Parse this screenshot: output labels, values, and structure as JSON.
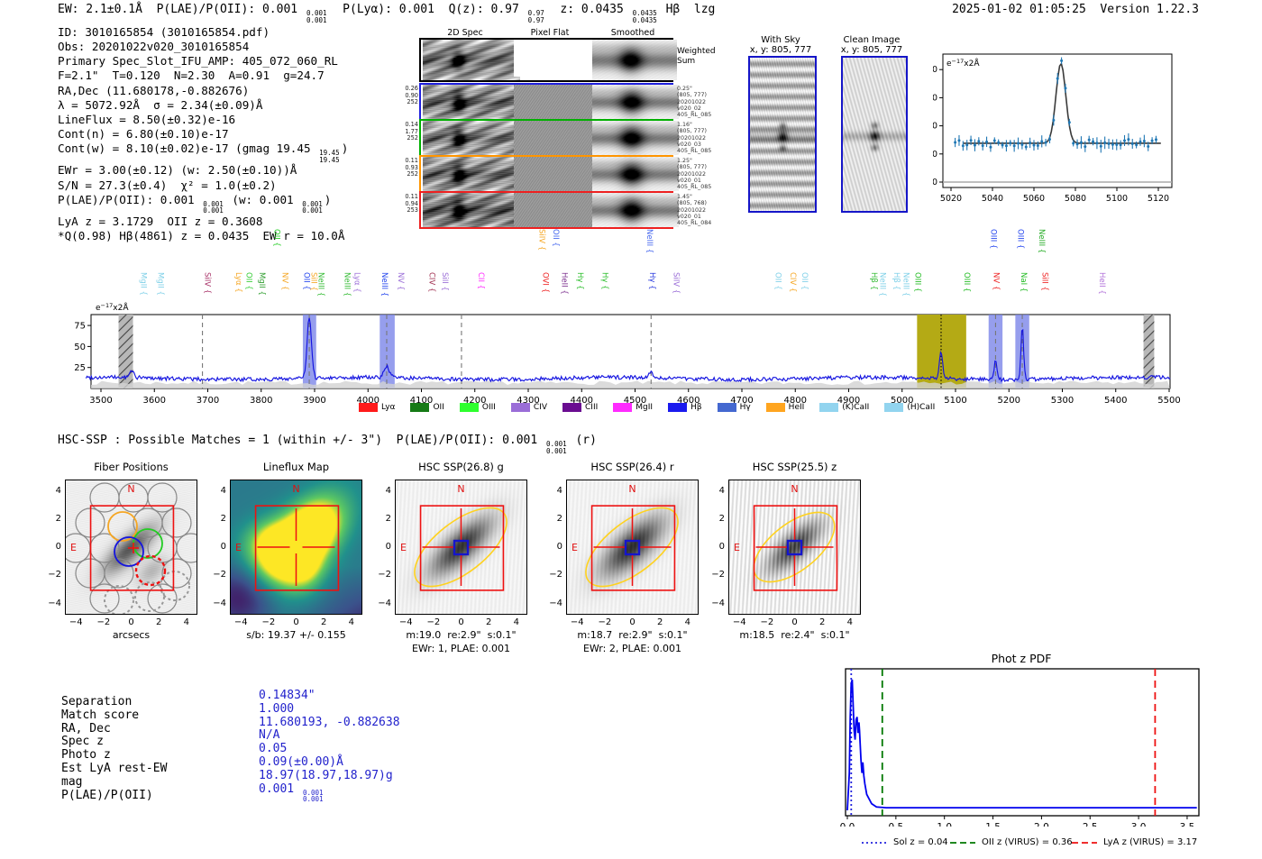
{
  "header": {
    "left": "EW: 2.1±0.1Å  P(LAE)/P(OII): 0.001 {0.001|0.001}  P(Lyα): 0.001  Q(z): 0.97 {0.97|0.97}  z: 0.0435 {0.0435|0.0435} Hβ  lzg",
    "right": "2025-01-02 01:05:25  Version 1.22.3"
  },
  "info_lines": [
    "ID: 3010165854 (3010165854.pdf)",
    "Obs: 20201022v020_3010165854",
    "Primary Spec_Slot_IFU_AMP: 405_072_060_RL",
    "F=2.1\"  T=0.120  N=2.30  A=0.91  g=24.7",
    "RA,Dec (11.680178,-0.882676)",
    "λ = 5072.92Å  σ = 2.34(±0.09)Å",
    "LineFlux = 8.50(±0.32)e-16",
    "Cont(n) = 6.80(±0.10)e-17",
    "Cont(w) = 8.10(±0.02)e-17 (gmag 19.45 {19.45|19.45})",
    "EWr = 3.00(±0.12) (w: 2.50(±0.10))Å",
    "S/N = 27.3(±0.4)  χ² = 1.0(±0.2)",
    "P(LAE)/P(OII): 0.001 {0.001|0.001} (w: 0.001 {0.001|0.001})",
    "LyA z = 3.1729  OII z = 0.3608",
    "*Q(0.98) Hβ(4861) z = 0.0435  EW r = 10.0Å"
  ],
  "spec2d": {
    "col_headers": [
      "2D Spec",
      "Pixel Flat",
      "Smoothed"
    ],
    "rows": [
      {
        "color": "#000000",
        "left": [],
        "right": [
          "Weighted",
          "Sum"
        ],
        "flat": "blank",
        "kind": "weighted"
      },
      {
        "color": "#2020dd",
        "left": [
          "0.26",
          "0.90",
          "252"
        ],
        "right": [
          "0.25\"",
          "(805, 777)",
          "20201022",
          "v020_02",
          "405_RL_085"
        ],
        "flat": "noise"
      },
      {
        "color": "#00b000",
        "left": [
          "0.14",
          "1.77",
          "252"
        ],
        "right": [
          "1.16\"",
          "(805, 777)",
          "20201022",
          "v020_03",
          "405_RL_085"
        ],
        "flat": "noise"
      },
      {
        "color": "#ff9500",
        "left": [
          "0.11",
          "0.93",
          "252"
        ],
        "right": [
          "1.25\"",
          "(805, 777)",
          "20201022",
          "v020_01",
          "405_RL_085"
        ],
        "flat": "noise"
      },
      {
        "color": "#ee2020",
        "left": [
          "0.11",
          "0.94",
          "253"
        ],
        "right": [
          "1.45\"",
          "(805, 768)",
          "20201022",
          "v020_01",
          "405_RL_084"
        ],
        "flat": "noise"
      }
    ]
  },
  "cutouts": {
    "with_sky": {
      "title": "With Sky",
      "subtitle": "x, y: 805, 777"
    },
    "clean": {
      "title": "Clean Image",
      "subtitle": "x, y: 805, 777"
    }
  },
  "hsc_line": "HSC-SSP : Possible Matches = 1 (within +/- 3\")  P(LAE)/P(OII): 0.001 {0.001|0.001} (r)",
  "legend": [
    {
      "label": "Lyα",
      "color": "#ff1a1a"
    },
    {
      "label": "OII",
      "color": "#157a15"
    },
    {
      "label": "OIII",
      "color": "#2eff2e"
    },
    {
      "label": "CIV",
      "color": "#9a6dd7"
    },
    {
      "label": "CIII",
      "color": "#6a0d91"
    },
    {
      "label": "MgII",
      "color": "#ff2bff"
    },
    {
      "label": "Hβ",
      "color": "#1a1aee"
    },
    {
      "label": "Hγ",
      "color": "#4468d0"
    },
    {
      "label": "HeII",
      "color": "#ffa51f"
    },
    {
      "label": "(K)CaII",
      "color": "#92d4ef"
    },
    {
      "label": "(H)CaII",
      "color": "#92d4ef"
    }
  ],
  "line_labels": [
    {
      "wl": 3580,
      "name": "MgII",
      "color": "#7fd0e8",
      "tier": 0
    },
    {
      "wl": 3612,
      "name": "MgII",
      "color": "#7fd0e8",
      "tier": 0
    },
    {
      "wl": 3700,
      "name": "SiIV",
      "color": "#a83268",
      "tier": 0
    },
    {
      "wl": 3758,
      "name": "Lyα",
      "color": "#f5a623",
      "tier": 0
    },
    {
      "wl": 3778,
      "name": "OII",
      "color": "#33cc33",
      "tier": 0
    },
    {
      "wl": 3802,
      "name": "MgII",
      "color": "#2f9e2f",
      "tier": 0
    },
    {
      "wl": 3830,
      "name": "OII",
      "color": "#22cc22",
      "tier": 1
    },
    {
      "wl": 3845,
      "name": "NV",
      "color": "#f5a623",
      "tier": 0
    },
    {
      "wl": 3886,
      "name": "OII",
      "color": "#2244ee",
      "tier": 0
    },
    {
      "wl": 3899,
      "name": "SiII",
      "color": "#f5a623",
      "tier": 0
    },
    {
      "wl": 3913,
      "name": "NeIII",
      "color": "#33bb33",
      "tier": 0
    },
    {
      "wl": 3962,
      "name": "NeIII",
      "color": "#33bb33",
      "tier": 0
    },
    {
      "wl": 3980,
      "name": "Lyα",
      "color": "#9a6dd7",
      "tier": 0
    },
    {
      "wl": 4032,
      "name": "NeIII",
      "color": "#2244ee",
      "tier": 0
    },
    {
      "wl": 4062,
      "name": "NV",
      "color": "#9a6dd7",
      "tier": 0
    },
    {
      "wl": 4120,
      "name": "CIV",
      "color": "#a03050",
      "tier": 0
    },
    {
      "wl": 4145,
      "name": "SiII",
      "color": "#9a6dd7",
      "tier": 0
    },
    {
      "wl": 4212,
      "name": "CII",
      "color": "#ff2bff",
      "tier": 0
    },
    {
      "wl": 4326,
      "name": "SiIV",
      "color": "#f5a623",
      "tier": 1
    },
    {
      "wl": 4333,
      "name": "OVI",
      "color": "#ee2222",
      "tier": 0
    },
    {
      "wl": 4352,
      "name": "OII",
      "color": "#4466ee",
      "tier": 1
    },
    {
      "wl": 4368,
      "name": "HeII",
      "color": "#7a2d8c",
      "tier": 0
    },
    {
      "wl": 4398,
      "name": "Hγ",
      "color": "#22bb22",
      "tier": 0
    },
    {
      "wl": 4444,
      "name": "Hγ",
      "color": "#22bb22",
      "tier": 0
    },
    {
      "wl": 4528,
      "name": "NeIII",
      "color": "#4466ee",
      "tier": 1
    },
    {
      "wl": 4533,
      "name": "Hγ",
      "color": "#2233dd",
      "tier": 0
    },
    {
      "wl": 4578,
      "name": "SiIV",
      "color": "#9a6dd7",
      "tier": 0
    },
    {
      "wl": 4768,
      "name": "OII",
      "color": "#7fd0e8",
      "tier": 0
    },
    {
      "wl": 4796,
      "name": "CIV",
      "color": "#f5a623",
      "tier": 0
    },
    {
      "wl": 4818,
      "name": "OII",
      "color": "#7fd0e8",
      "tier": 0
    },
    {
      "wl": 4948,
      "name": "Hβ",
      "color": "#33bb33",
      "tier": 0
    },
    {
      "wl": 4964,
      "name": "NeIII",
      "color": "#7fd0e8",
      "tier": 0
    },
    {
      "wl": 4990,
      "name": "Hβ",
      "color": "#7fd0e8",
      "tier": 0
    },
    {
      "wl": 5008,
      "name": "NeIII",
      "color": "#7fd0e8",
      "tier": 0
    },
    {
      "wl": 5030,
      "name": "OIII",
      "color": "#22bb22",
      "tier": 0
    },
    {
      "wl": 5122,
      "name": "OIII",
      "color": "#22bb22",
      "tier": 0
    },
    {
      "wl": 5172,
      "name": "OIII",
      "color": "#2244ee",
      "tier": 1
    },
    {
      "wl": 5177,
      "name": "NV",
      "color": "#ee2222",
      "tier": 0
    },
    {
      "wl": 5222,
      "name": "OIII",
      "color": "#2244ee",
      "tier": 1
    },
    {
      "wl": 5228,
      "name": "NaI",
      "color": "#22bb22",
      "tier": 0
    },
    {
      "wl": 5262,
      "name": "NeIII",
      "color": "#22aa22",
      "tier": 1
    },
    {
      "wl": 5268,
      "name": "SiII",
      "color": "#ee2222",
      "tier": 0
    },
    {
      "wl": 5375,
      "name": "HeII",
      "color": "#b06fd8",
      "tier": 0
    }
  ],
  "chart_data": [
    {
      "id": "line_fit_inset",
      "type": "scatter",
      "title": "",
      "xlabel": "",
      "ylabel": "e-17x2Å",
      "x_ticks": [
        5020,
        5040,
        5060,
        5080,
        5100,
        5120
      ],
      "y_ticks": [
        0,
        10,
        20,
        30,
        40
      ],
      "xlim": [
        5015,
        5125
      ],
      "ylim": [
        -3,
        46
      ],
      "baseline": 14,
      "gaussian_fit": {
        "center": 5073,
        "amplitude": 28.4,
        "sigma": 2.35,
        "continuum": 13.8
      },
      "points_description": "blue data points with error bars every ~1.9Å, scatter ±1.5 around baseline 14, peaking at 42 near 5073"
    },
    {
      "id": "full_spectrum",
      "type": "line",
      "ylabel": "e-17x2Å",
      "x_ticks": [
        3500,
        3600,
        3700,
        3800,
        3900,
        4000,
        4100,
        4200,
        4300,
        4400,
        4500,
        4600,
        4700,
        4800,
        4900,
        5000,
        5100,
        5200,
        5300,
        5400,
        5500
      ],
      "y_ticks": [
        25,
        50,
        75
      ],
      "xlim": [
        3470,
        5505
      ],
      "ylim": [
        0,
        88
      ],
      "baseline": 13,
      "peaks": [
        {
          "x": 3558,
          "amp": 8,
          "sigma": 4
        },
        {
          "x": 3890,
          "amp": 72,
          "sigma": 4
        },
        {
          "x": 4035,
          "amp": 13,
          "sigma": 5
        },
        {
          "x": 4530,
          "amp": 9,
          "sigma": 3
        },
        {
          "x": 5073,
          "amp": 32,
          "sigma": 3
        },
        {
          "x": 5175,
          "amp": 24,
          "sigma": 2.5
        },
        {
          "x": 5225,
          "amp": 62,
          "sigma": 2.5
        }
      ],
      "shaded_bands": [
        {
          "x0": 3533,
          "x1": 3560,
          "style": "hatched-gray"
        },
        {
          "x0": 3878,
          "x1": 3903,
          "style": "blue"
        },
        {
          "x0": 4022,
          "x1": 4050,
          "style": "blue"
        },
        {
          "x0": 5028,
          "x1": 5120,
          "style": "olive"
        },
        {
          "x0": 5162,
          "x1": 5188,
          "style": "blue"
        },
        {
          "x0": 5212,
          "x1": 5238,
          "style": "blue"
        },
        {
          "x0": 5452,
          "x1": 5472,
          "style": "hatched-gray"
        }
      ],
      "dashed_gray_lines": [
        3690,
        3890,
        4035,
        4175,
        4530,
        5175,
        5225
      ],
      "dotted_black_line": 5073
    },
    {
      "id": "phot_z_pdf",
      "type": "line",
      "title": "Phot z PDF",
      "x_ticks": [
        0.0,
        0.5,
        1.0,
        1.5,
        2.0,
        2.5,
        3.0,
        3.5
      ],
      "xlim": [
        -0.05,
        3.62
      ],
      "ylim": [
        0,
        1.08
      ],
      "curve": [
        [
          0.0,
          0.02
        ],
        [
          0.02,
          0.3
        ],
        [
          0.03,
          0.72
        ],
        [
          0.04,
          0.97
        ],
        [
          0.05,
          1.0
        ],
        [
          0.06,
          0.8
        ],
        [
          0.07,
          0.62
        ],
        [
          0.08,
          0.55
        ],
        [
          0.09,
          0.7
        ],
        [
          0.1,
          0.72
        ],
        [
          0.11,
          0.6
        ],
        [
          0.12,
          0.68
        ],
        [
          0.125,
          0.62
        ],
        [
          0.13,
          0.55
        ],
        [
          0.14,
          0.4
        ],
        [
          0.15,
          0.3
        ],
        [
          0.16,
          0.38
        ],
        [
          0.17,
          0.28
        ],
        [
          0.18,
          0.22
        ],
        [
          0.2,
          0.14
        ],
        [
          0.25,
          0.07
        ],
        [
          0.3,
          0.045
        ],
        [
          0.4,
          0.04
        ],
        [
          3.6,
          0.04
        ]
      ],
      "vlines": [
        {
          "x": 0.04,
          "color": "#2222dd",
          "style": "dotted",
          "label": "Sol z = 0.04"
        },
        {
          "x": 0.36,
          "color": "#007700",
          "style": "dashed",
          "label": "OII z (VIRUS) = 0.36"
        },
        {
          "x": 3.17,
          "color": "#ee1111",
          "style": "dashed",
          "label": "LyA z (VIRUS) = 3.17"
        }
      ]
    }
  ],
  "panels": [
    {
      "title": "Fiber Positions",
      "xlabel": "arcsecs",
      "captions": [],
      "ticks": [
        -4,
        -2,
        0,
        2,
        4
      ]
    },
    {
      "title": "Lineflux Map",
      "xlabel": "",
      "captions": [
        "s/b: 19.37 +/- 0.155"
      ],
      "ticks": [
        -4,
        -2,
        0,
        2,
        4
      ]
    },
    {
      "title": "HSC SSP(26.8) g",
      "xlabel": "",
      "captions": [
        "m:19.0  re:2.9\"  s:0.1\"",
        "EWr: 1, PLAE: 0.001"
      ],
      "ticks": [
        -4,
        -2,
        0,
        2,
        4
      ]
    },
    {
      "title": "HSC SSP(26.4) r",
      "xlabel": "",
      "captions": [
        "m:18.7  re:2.9\"  s:0.1\"",
        "EWr: 2, PLAE: 0.001"
      ],
      "ticks": [
        -4,
        -2,
        0,
        2,
        4
      ]
    },
    {
      "title": "HSC SSP(25.5) z",
      "xlabel": "",
      "captions": [
        "m:18.5  re:2.4\"  s:0.1\""
      ],
      "ticks": [
        -4,
        -2,
        0,
        2,
        4
      ]
    }
  ],
  "compass": {
    "north": "N",
    "east": "E"
  },
  "match_table": {
    "labels": [
      "Separation",
      "Match score",
      "RA, Dec",
      "Spec z",
      "Photo z",
      "Est LyA rest-EW",
      "mag",
      "P(LAE)/P(OII)"
    ],
    "values": [
      "0.14834\"",
      "1.000",
      "11.680193, -0.882638",
      "N/A",
      "0.05",
      "0.09(±0.00)Å",
      "18.97(18.97,18.97)g",
      "0.001 {0.001|0.001}"
    ]
  },
  "photz": {
    "title": "Phot z PDF"
  }
}
